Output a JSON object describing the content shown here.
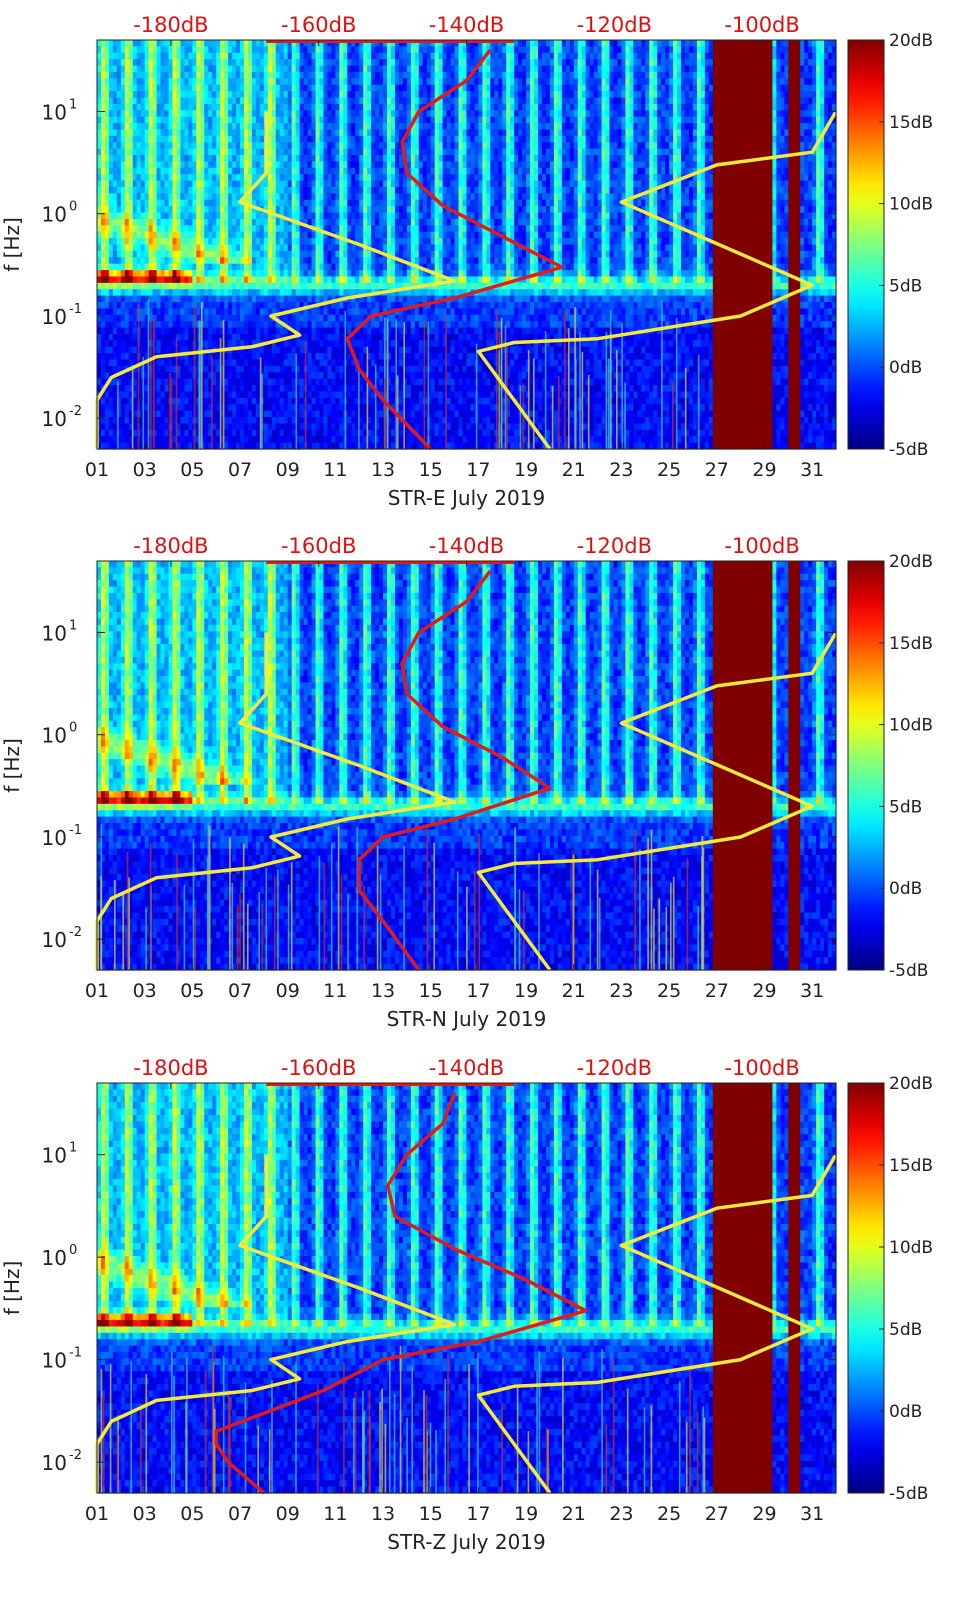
{
  "chart_data": [
    {
      "type": "heatmap",
      "title": "",
      "xlabel": "STR-E July 2019",
      "ylabel": "f [Hz]",
      "x_ticks": [
        "01",
        "03",
        "05",
        "07",
        "09",
        "11",
        "13",
        "15",
        "17",
        "19",
        "21",
        "23",
        "25",
        "27",
        "29",
        "31"
      ],
      "y_ticks": [
        {
          "label_base": "10",
          "label_exp": "-2",
          "value": 0.01
        },
        {
          "label_base": "10",
          "label_exp": "-1",
          "value": 0.1
        },
        {
          "label_base": "10",
          "label_exp": "0",
          "value": 1
        },
        {
          "label_base": "10",
          "label_exp": "1",
          "value": 10
        }
      ],
      "top_ticks": [
        "-180dB",
        "-160dB",
        "-140dB",
        "-120dB",
        "-100dB"
      ],
      "colorbar": {
        "ticks": [
          "20dB",
          "15dB",
          "10dB",
          "5dB",
          "0dB",
          "-5dB"
        ],
        "range_db": [
          -5,
          20
        ]
      },
      "xlim_day": [
        1,
        32
      ],
      "ylim_hz": [
        0.005,
        50
      ],
      "top_range_db": [
        -190,
        -90
      ],
      "yellow_curve_left": [
        [
          1.0,
          0.005
        ],
        [
          1.0,
          0.015
        ],
        [
          1.6,
          0.025
        ],
        [
          3.5,
          0.04
        ],
        [
          7.5,
          0.05
        ],
        [
          9.5,
          0.065
        ],
        [
          8.3,
          0.1
        ],
        [
          11.5,
          0.15
        ],
        [
          16.0,
          0.22
        ],
        [
          12.0,
          0.5
        ],
        [
          7.0,
          1.3
        ],
        [
          8.1,
          2.5
        ],
        [
          8.1,
          10.0
        ]
      ],
      "yellow_curve_right": [
        [
          20.0,
          0.005
        ],
        [
          17.0,
          0.045
        ],
        [
          18.5,
          0.055
        ],
        [
          22.0,
          0.06
        ],
        [
          28.0,
          0.1
        ],
        [
          31.0,
          0.2
        ],
        [
          23.0,
          1.3
        ],
        [
          27.0,
          3.0
        ],
        [
          31.0,
          4.0
        ],
        [
          32.0,
          10.0
        ]
      ],
      "red_curve": [
        [
          15.0,
          0.005
        ],
        [
          13.0,
          0.015
        ],
        [
          12.0,
          0.03
        ],
        [
          11.5,
          0.06
        ],
        [
          12.5,
          0.1
        ],
        [
          16.0,
          0.15
        ],
        [
          20.5,
          0.3
        ],
        [
          18.0,
          0.6
        ],
        [
          15.5,
          1.2
        ],
        [
          14.0,
          2.5
        ],
        [
          13.8,
          5.0
        ],
        [
          14.5,
          10.0
        ],
        [
          16.5,
          20.0
        ],
        [
          17.5,
          40.0
        ]
      ]
    },
    {
      "type": "heatmap",
      "title": "",
      "xlabel": "STR-N July 2019",
      "ylabel": "f [Hz]",
      "x_ticks": [
        "01",
        "03",
        "05",
        "07",
        "09",
        "11",
        "13",
        "15",
        "17",
        "19",
        "21",
        "23",
        "25",
        "27",
        "29",
        "31"
      ],
      "y_ticks": [
        {
          "label_base": "10",
          "label_exp": "-2",
          "value": 0.01
        },
        {
          "label_base": "10",
          "label_exp": "-1",
          "value": 0.1
        },
        {
          "label_base": "10",
          "label_exp": "0",
          "value": 1
        },
        {
          "label_base": "10",
          "label_exp": "1",
          "value": 10
        }
      ],
      "top_ticks": [
        "-180dB",
        "-160dB",
        "-140dB",
        "-120dB",
        "-100dB"
      ],
      "colorbar": {
        "ticks": [
          "20dB",
          "15dB",
          "10dB",
          "5dB",
          "0dB",
          "-5dB"
        ],
        "range_db": [
          -5,
          20
        ]
      },
      "xlim_day": [
        1,
        32
      ],
      "ylim_hz": [
        0.005,
        50
      ],
      "top_range_db": [
        -190,
        -90
      ],
      "yellow_curve_left": [
        [
          1.0,
          0.005
        ],
        [
          1.0,
          0.015
        ],
        [
          1.6,
          0.025
        ],
        [
          3.5,
          0.04
        ],
        [
          7.5,
          0.05
        ],
        [
          9.5,
          0.065
        ],
        [
          8.3,
          0.1
        ],
        [
          11.5,
          0.15
        ],
        [
          16.0,
          0.22
        ],
        [
          12.0,
          0.5
        ],
        [
          7.0,
          1.3
        ],
        [
          8.1,
          2.5
        ],
        [
          8.1,
          10.0
        ]
      ],
      "yellow_curve_right": [
        [
          20.0,
          0.005
        ],
        [
          17.0,
          0.045
        ],
        [
          18.5,
          0.055
        ],
        [
          22.0,
          0.06
        ],
        [
          28.0,
          0.1
        ],
        [
          31.0,
          0.2
        ],
        [
          23.0,
          1.3
        ],
        [
          27.0,
          3.0
        ],
        [
          31.0,
          4.0
        ],
        [
          32.0,
          10.0
        ]
      ],
      "red_curve": [
        [
          14.5,
          0.005
        ],
        [
          13.0,
          0.015
        ],
        [
          12.0,
          0.03
        ],
        [
          12.0,
          0.06
        ],
        [
          13.0,
          0.1
        ],
        [
          16.0,
          0.15
        ],
        [
          20.0,
          0.3
        ],
        [
          18.0,
          0.6
        ],
        [
          15.5,
          1.2
        ],
        [
          14.0,
          2.5
        ],
        [
          13.8,
          5.0
        ],
        [
          14.5,
          10.0
        ],
        [
          16.5,
          20.0
        ],
        [
          17.5,
          40.0
        ]
      ]
    },
    {
      "type": "heatmap",
      "title": "",
      "xlabel": "STR-Z July 2019",
      "ylabel": "f [Hz]",
      "x_ticks": [
        "01",
        "03",
        "05",
        "07",
        "09",
        "11",
        "13",
        "15",
        "17",
        "19",
        "21",
        "23",
        "25",
        "27",
        "29",
        "31"
      ],
      "y_ticks": [
        {
          "label_base": "10",
          "label_exp": "-2",
          "value": 0.01
        },
        {
          "label_base": "10",
          "label_exp": "-1",
          "value": 0.1
        },
        {
          "label_base": "10",
          "label_exp": "0",
          "value": 1
        },
        {
          "label_base": "10",
          "label_exp": "1",
          "value": 10
        }
      ],
      "top_ticks": [
        "-180dB",
        "-160dB",
        "-140dB",
        "-120dB",
        "-100dB"
      ],
      "colorbar": {
        "ticks": [
          "20dB",
          "15dB",
          "10dB",
          "5dB",
          "0dB",
          "-5dB"
        ],
        "range_db": [
          -5,
          20
        ]
      },
      "xlim_day": [
        1,
        32
      ],
      "ylim_hz": [
        0.005,
        50
      ],
      "top_range_db": [
        -190,
        -90
      ],
      "yellow_curve_left": [
        [
          1.0,
          0.005
        ],
        [
          1.0,
          0.015
        ],
        [
          1.6,
          0.025
        ],
        [
          3.5,
          0.04
        ],
        [
          7.5,
          0.05
        ],
        [
          9.5,
          0.065
        ],
        [
          8.3,
          0.1
        ],
        [
          11.5,
          0.15
        ],
        [
          16.0,
          0.22
        ],
        [
          12.0,
          0.5
        ],
        [
          7.0,
          1.3
        ],
        [
          8.1,
          2.5
        ],
        [
          8.1,
          10.0
        ]
      ],
      "yellow_curve_right": [
        [
          20.0,
          0.005
        ],
        [
          17.0,
          0.045
        ],
        [
          18.5,
          0.055
        ],
        [
          22.0,
          0.06
        ],
        [
          28.0,
          0.1
        ],
        [
          31.0,
          0.2
        ],
        [
          23.0,
          1.3
        ],
        [
          27.0,
          3.0
        ],
        [
          31.0,
          4.0
        ],
        [
          32.0,
          10.0
        ]
      ],
      "red_curve": [
        [
          8.0,
          0.005
        ],
        [
          6.5,
          0.01
        ],
        [
          6.0,
          0.015
        ],
        [
          6.0,
          0.02
        ],
        [
          8.0,
          0.03
        ],
        [
          10.5,
          0.05
        ],
        [
          13.0,
          0.1
        ],
        [
          17.0,
          0.15
        ],
        [
          21.5,
          0.3
        ],
        [
          19.0,
          0.6
        ],
        [
          16.0,
          1.2
        ],
        [
          13.5,
          2.5
        ],
        [
          13.2,
          5.0
        ],
        [
          14.0,
          10.0
        ],
        [
          15.5,
          20.0
        ],
        [
          16.0,
          40.0
        ]
      ]
    }
  ],
  "colors": {
    "top_tick_text": "#e01010",
    "curve_yellow": "#f5ea3a",
    "curve_red": "#e01b1b",
    "saturated_block": "#7d0000"
  }
}
